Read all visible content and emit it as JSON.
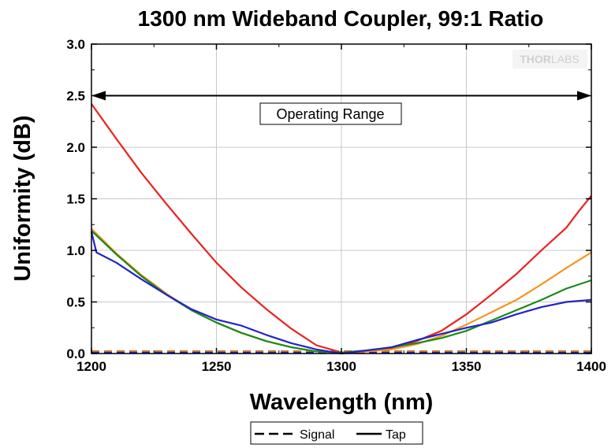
{
  "chart_data": {
    "type": "line",
    "title": "1300 nm Wideband Coupler, 99:1 Ratio",
    "xlabel": "Wavelength (nm)",
    "ylabel": "Uniformity (dB)",
    "xlim": [
      1200,
      1400
    ],
    "ylim": [
      0,
      3.0
    ],
    "x_ticks": [
      "1200",
      "1250",
      "1300",
      "1350",
      "1400"
    ],
    "y_ticks": [
      "0.0",
      "0.5",
      "1.0",
      "1.5",
      "2.0",
      "2.5",
      "3.0"
    ],
    "grid": true,
    "legend_position": "bottom",
    "legend": [
      {
        "label": "Signal",
        "style": "dashed"
      },
      {
        "label": "Tap",
        "style": "solid"
      }
    ],
    "annotation": {
      "text": "Operating Range",
      "x_start": 1200,
      "x_end": 1400,
      "y": 2.5
    },
    "logo": {
      "part1": "THOR",
      "part2": "LABS"
    },
    "series": [
      {
        "color": "#e8231f",
        "style": "solid",
        "x": [
          1200,
          1210,
          1220,
          1230,
          1240,
          1250,
          1260,
          1270,
          1280,
          1290,
          1300,
          1305,
          1310,
          1320,
          1330,
          1340,
          1350,
          1360,
          1370,
          1380,
          1390,
          1395,
          1400
        ],
        "y": [
          2.42,
          2.08,
          1.75,
          1.45,
          1.16,
          0.88,
          0.64,
          0.43,
          0.24,
          0.08,
          0.01,
          0.01,
          0.02,
          0.05,
          0.12,
          0.22,
          0.38,
          0.57,
          0.77,
          1.0,
          1.22,
          1.38,
          1.53
        ]
      },
      {
        "color": "#f7941d",
        "style": "solid",
        "x": [
          1200,
          1210,
          1220,
          1230,
          1240,
          1250,
          1260,
          1270,
          1280,
          1290,
          1300,
          1310,
          1320,
          1330,
          1340,
          1350,
          1360,
          1370,
          1380,
          1390,
          1400
        ],
        "y": [
          1.21,
          0.97,
          0.76,
          0.58,
          0.42,
          0.3,
          0.2,
          0.12,
          0.06,
          0.02,
          0.01,
          0.02,
          0.04,
          0.09,
          0.17,
          0.28,
          0.4,
          0.52,
          0.67,
          0.83,
          0.98
        ]
      },
      {
        "color": "#1a8a1a",
        "style": "solid",
        "x": [
          1200,
          1210,
          1220,
          1230,
          1240,
          1250,
          1260,
          1270,
          1280,
          1290,
          1300,
          1310,
          1320,
          1330,
          1340,
          1350,
          1360,
          1370,
          1380,
          1390,
          1400
        ],
        "y": [
          1.19,
          0.96,
          0.75,
          0.57,
          0.42,
          0.3,
          0.2,
          0.12,
          0.06,
          0.02,
          0.01,
          0.03,
          0.06,
          0.1,
          0.15,
          0.22,
          0.32,
          0.42,
          0.52,
          0.63,
          0.71
        ]
      },
      {
        "color": "#2323c8",
        "style": "solid",
        "x": [
          1200,
          1202,
          1210,
          1220,
          1230,
          1240,
          1250,
          1260,
          1270,
          1280,
          1290,
          1300,
          1310,
          1320,
          1330,
          1340,
          1350,
          1360,
          1370,
          1380,
          1390,
          1400
        ],
        "y": [
          1.18,
          0.98,
          0.88,
          0.72,
          0.57,
          0.43,
          0.33,
          0.27,
          0.18,
          0.1,
          0.04,
          0.0,
          0.03,
          0.06,
          0.13,
          0.19,
          0.25,
          0.3,
          0.38,
          0.45,
          0.5,
          0.52
        ]
      },
      {
        "color": "#e8231f",
        "style": "dashed",
        "x": [
          1200,
          1400
        ],
        "y": [
          0.02,
          0.02
        ]
      },
      {
        "color": "#f7941d",
        "style": "dashed",
        "x": [
          1200,
          1400
        ],
        "y": [
          0.015,
          0.015
        ]
      },
      {
        "color": "#1a8a1a",
        "style": "dashed",
        "x": [
          1200,
          1400
        ],
        "y": [
          0.01,
          0.01
        ]
      },
      {
        "color": "#2323c8",
        "style": "dashed",
        "x": [
          1200,
          1400
        ],
        "y": [
          0.005,
          0.005
        ]
      }
    ]
  }
}
